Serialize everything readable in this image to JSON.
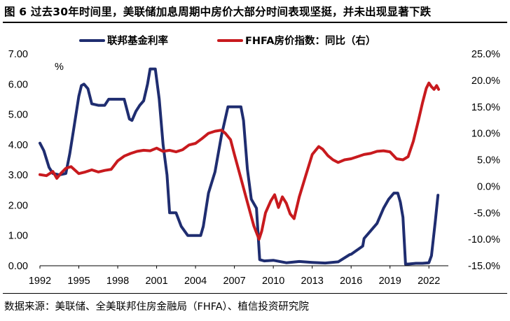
{
  "title": "图 6 过去30年时间里，美联储加息周期中房价大部分时间表现坚挺，并未出现显著下跌",
  "source": "数据来源：美联储、全美联邦住房金融局（FHFA）、植信投资研究院",
  "colors": {
    "fed": "#1f2d70",
    "hpi": "#c81a1e"
  },
  "chart_data": {
    "type": "line",
    "title": "图 6 过去30年时间里，美联储加息周期中房价大部分时间表现坚挺，并未出现显著下跌",
    "left_unit": "%",
    "x_tick_labels": [
      "1992",
      "1995",
      "1998",
      "2001",
      "2004",
      "2007",
      "2010",
      "2013",
      "2016",
      "2019",
      "2022"
    ],
    "xlim": [
      1992,
      2023.5
    ],
    "ylim_left": [
      0,
      7
    ],
    "ylim_right": [
      -15,
      25
    ],
    "y_left_ticks": [
      "0.00",
      "1.00",
      "2.00",
      "3.00",
      "4.00",
      "5.00",
      "6.00",
      "7.00"
    ],
    "y_right_ticks": [
      "-15.0%",
      "-10.0%",
      "-5.0%",
      "0.0%",
      "5.0%",
      "10.0%",
      "15.0%",
      "20.0%",
      "25.0%"
    ],
    "legend_position": "top",
    "series": [
      {
        "name": "联邦基金利率",
        "axis": "left",
        "color": "#1f2d70",
        "x": [
          1992.0,
          1992.3,
          1992.7,
          1993.0,
          1993.5,
          1994.0,
          1994.3,
          1994.6,
          1995.0,
          1995.2,
          1995.4,
          1995.7,
          1996.0,
          1996.5,
          1997.0,
          1997.3,
          1997.8,
          1998.5,
          1998.9,
          1999.1,
          1999.4,
          1999.7,
          2000.0,
          2000.3,
          2000.5,
          2000.9,
          2001.2,
          2001.5,
          2001.8,
          2002.0,
          2002.5,
          2002.9,
          2003.4,
          2003.8,
          2004.4,
          2004.6,
          2005.0,
          2005.5,
          2006.0,
          2006.5,
          2007.0,
          2007.5,
          2007.7,
          2008.0,
          2008.3,
          2008.7,
          2008.95,
          2009.3,
          2010.0,
          2011.0,
          2012.0,
          2013.0,
          2014.0,
          2015.0,
          2015.9,
          2016.0,
          2016.9,
          2017.0,
          2017.5,
          2018.0,
          2018.5,
          2018.9,
          2019.3,
          2019.6,
          2019.8,
          2020.0,
          2020.2,
          2020.5,
          2021.0,
          2021.5,
          2022.0,
          2022.2,
          2022.5,
          2022.7
        ],
        "y": [
          4.05,
          3.8,
          3.25,
          3.05,
          3.0,
          3.05,
          3.7,
          4.5,
          5.6,
          5.95,
          6.0,
          5.85,
          5.35,
          5.3,
          5.3,
          5.5,
          5.5,
          5.5,
          4.85,
          4.8,
          5.1,
          5.3,
          5.45,
          6.0,
          6.5,
          6.5,
          5.5,
          4.0,
          3.0,
          1.75,
          1.75,
          1.3,
          1.0,
          1.0,
          1.0,
          1.3,
          2.4,
          3.1,
          4.3,
          5.25,
          5.25,
          5.25,
          4.8,
          3.2,
          2.2,
          1.9,
          0.2,
          0.16,
          0.18,
          0.1,
          0.14,
          0.11,
          0.09,
          0.13,
          0.37,
          0.38,
          0.65,
          0.9,
          1.15,
          1.4,
          1.9,
          2.2,
          2.4,
          2.4,
          2.1,
          1.6,
          0.05,
          0.06,
          0.08,
          0.08,
          0.1,
          0.33,
          1.5,
          2.33
        ]
      },
      {
        "name": "FHFA房价指数：同比（右）",
        "axis": "right",
        "color": "#c81a1e",
        "x": [
          1992.0,
          1992.5,
          1993.0,
          1993.3,
          1993.6,
          1994.0,
          1994.4,
          1995.0,
          1995.5,
          1996.0,
          1996.5,
          1997.0,
          1997.5,
          1998.0,
          1998.5,
          1999.0,
          1999.5,
          2000.0,
          2000.5,
          2001.0,
          2001.5,
          2002.0,
          2002.5,
          2003.0,
          2003.5,
          2004.0,
          2004.5,
          2005.0,
          2005.5,
          2006.0,
          2006.3,
          2006.7,
          2007.0,
          2007.5,
          2008.0,
          2008.5,
          2008.9,
          2009.1,
          2009.4,
          2009.8,
          2010.1,
          2010.4,
          2010.7,
          2011.0,
          2011.3,
          2011.6,
          2012.0,
          2012.5,
          2013.0,
          2013.5,
          2013.8,
          2014.2,
          2014.6,
          2015.0,
          2015.5,
          2016.0,
          2016.5,
          2017.0,
          2017.5,
          2018.0,
          2018.5,
          2019.0,
          2019.5,
          2020.0,
          2020.4,
          2020.8,
          2021.2,
          2021.5,
          2021.8,
          2022.0,
          2022.2,
          2022.4,
          2022.6,
          2022.75
        ],
        "y": [
          2.2,
          2.0,
          2.8,
          1.5,
          2.4,
          3.4,
          3.7,
          2.4,
          2.7,
          3.1,
          2.7,
          3.0,
          3.2,
          4.8,
          5.7,
          6.2,
          6.6,
          6.8,
          6.7,
          7.2,
          6.6,
          6.8,
          6.5,
          6.9,
          7.8,
          8.1,
          9.0,
          10.0,
          10.4,
          10.6,
          10.0,
          8.8,
          6.0,
          1.5,
          -3.0,
          -7.5,
          -10.0,
          -8.5,
          -5.0,
          -2.8,
          -1.6,
          -4.0,
          -2.0,
          -3.2,
          -5.2,
          -6.1,
          -2.0,
          2.0,
          6.0,
          7.5,
          7.0,
          5.8,
          5.0,
          4.5,
          5.0,
          5.2,
          5.6,
          6.0,
          6.2,
          6.6,
          6.7,
          6.5,
          5.2,
          5.0,
          5.6,
          8.5,
          12.5,
          15.7,
          18.5,
          19.5,
          18.8,
          18.3,
          19.0,
          18.3
        ]
      }
    ]
  }
}
